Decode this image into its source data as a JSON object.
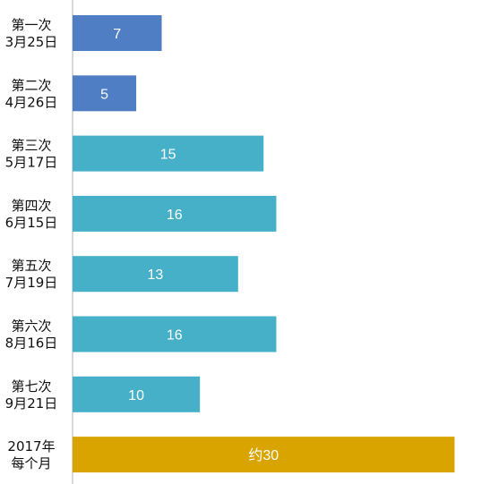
{
  "chart_data": {
    "type": "bar",
    "orientation": "horizontal",
    "title": "",
    "xlabel": "",
    "ylabel": "",
    "grid": false,
    "legend": "none",
    "xlim": [
      0,
      32.5
    ],
    "categories": [
      [
        "第一次",
        "3月25日"
      ],
      [
        "第二次",
        "4月26日"
      ],
      [
        "第三次",
        "5月17日"
      ],
      [
        "第四次",
        "6月15日"
      ],
      [
        "第五次",
        "7月19日"
      ],
      [
        "第六次",
        "8月16日"
      ],
      [
        "第七次",
        "9月21日"
      ],
      [
        "2017年",
        "每个月"
      ]
    ],
    "values": [
      7,
      5,
      15,
      16,
      13,
      16,
      10,
      30
    ],
    "data_labels": [
      "7",
      "5",
      "15",
      "16",
      "13",
      "16",
      "10",
      "约30"
    ],
    "colors": [
      "#4f7ec4",
      "#4f7ec4",
      "#45b0c8",
      "#45b0c8",
      "#45b0c8",
      "#45b0c8",
      "#45b0c8",
      "#d9a300"
    ]
  }
}
